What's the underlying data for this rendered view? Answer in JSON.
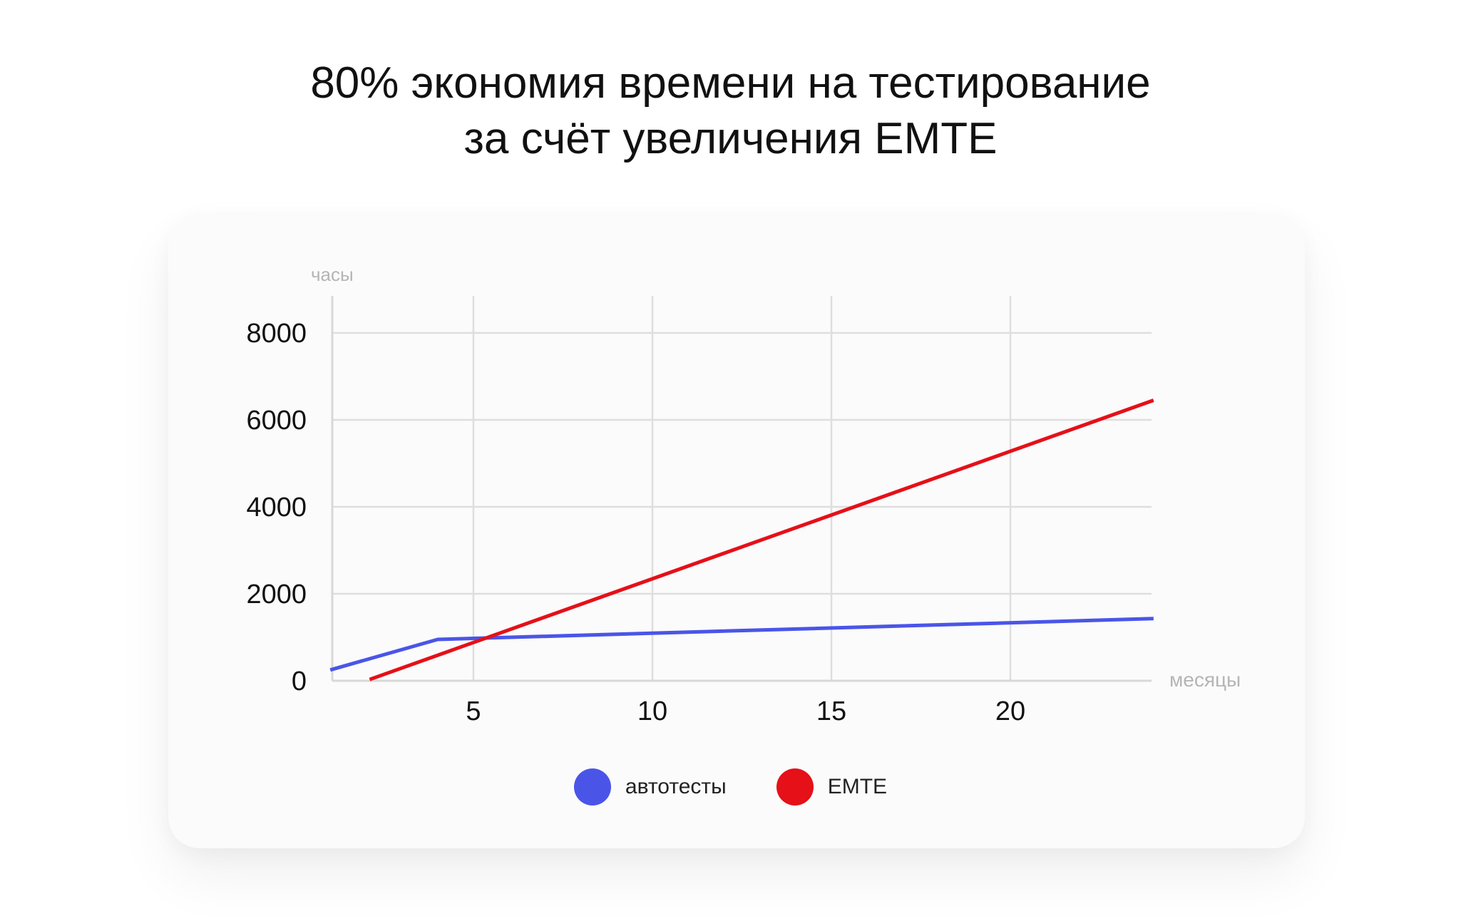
{
  "title_lines": [
    "80% экономия времени на тестирование",
    "за счёт увеличения EMTE"
  ],
  "chart_data": {
    "type": "line",
    "title": "80% экономия времени на тестирование за счёт увеличения EMTE",
    "xlabel": "месяцы",
    "ylabel": "часы",
    "xlim": [
      1,
      24
    ],
    "ylim": [
      0,
      8000
    ],
    "x_ticks": [
      5,
      10,
      15,
      20
    ],
    "y_ticks": [
      0,
      2000,
      4000,
      6000,
      8000
    ],
    "grid": true,
    "legend_position": "bottom",
    "series": [
      {
        "name": "автотесты",
        "color": "#4a55e8",
        "points": [
          [
            1,
            250
          ],
          [
            4,
            950
          ],
          [
            24,
            1430
          ]
        ]
      },
      {
        "name": "EMTE",
        "color": "#e51018",
        "points": [
          [
            2.1,
            30
          ],
          [
            24,
            6450
          ]
        ]
      }
    ]
  },
  "legend": [
    {
      "label": "автотесты",
      "color": "#4a55e8"
    },
    {
      "label": "EMTE",
      "color": "#e51018"
    }
  ]
}
